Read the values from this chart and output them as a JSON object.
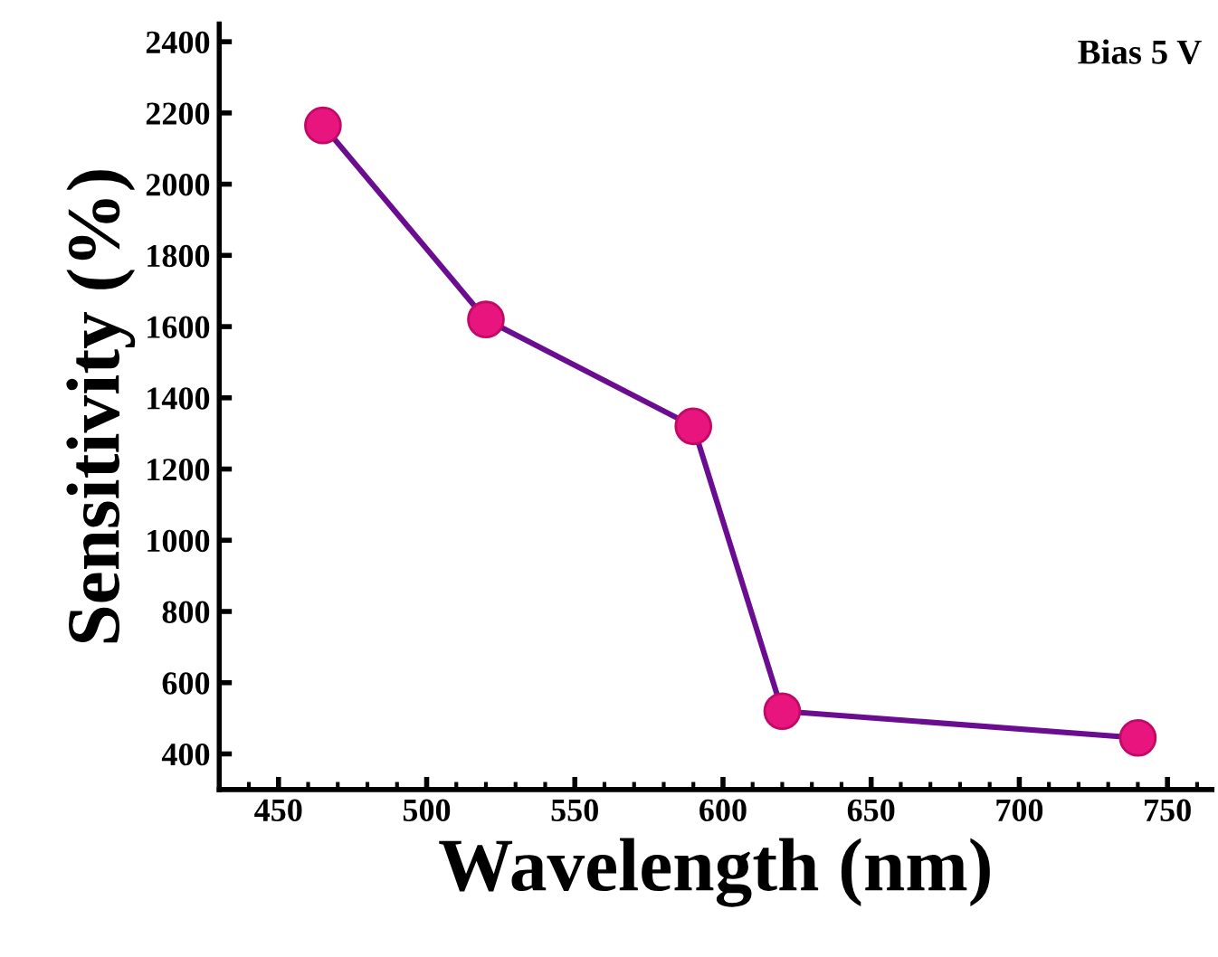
{
  "chart_data": {
    "type": "line",
    "xlabel": "Wavelength (nm)",
    "ylabel": "Sensitivity (%)",
    "annotations": [
      "Bias 5 V"
    ],
    "x": [
      465,
      520,
      590,
      620,
      740
    ],
    "series": [
      {
        "color": "#6a0d91",
        "values": [
          2165,
          1620,
          1320,
          520,
          445
        ]
      }
    ],
    "marker": "circle",
    "line_style": "solid",
    "grid": false,
    "xlim": [
      430,
      765
    ],
    "xticks": [
      450,
      500,
      550,
      600,
      650,
      700,
      750
    ],
    "ylim": [
      300,
      2450
    ],
    "yticks": [
      400,
      600,
      800,
      1000,
      1200,
      1400,
      1600,
      1800,
      2000,
      2200,
      2400
    ]
  }
}
